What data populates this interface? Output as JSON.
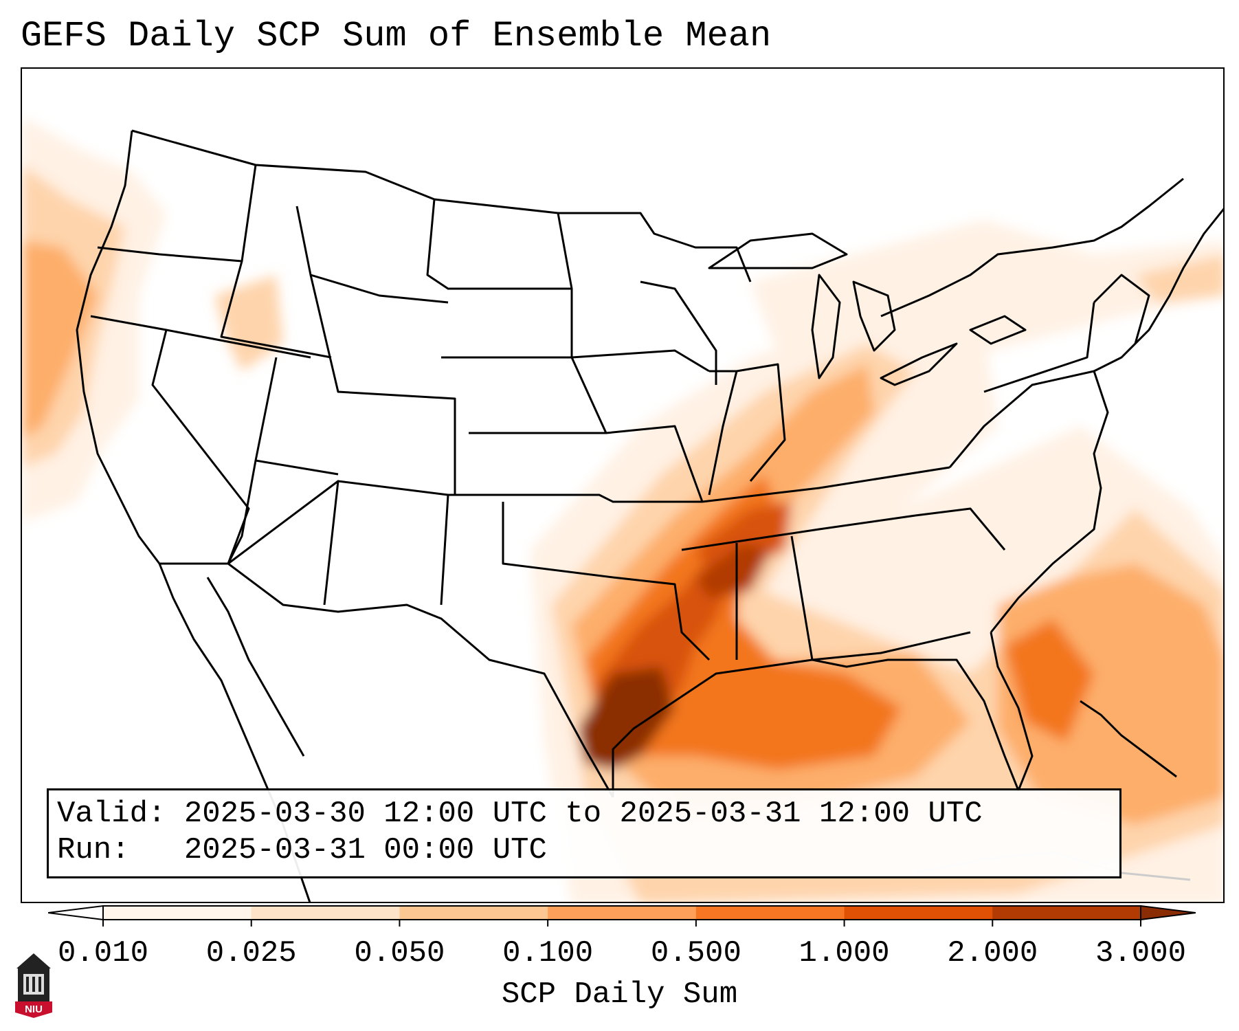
{
  "title": "GEFS Daily SCP Sum of Ensemble Mean",
  "info": {
    "valid": "Valid: 2025-03-30 12:00 UTC to 2025-03-31 12:00 UTC",
    "run": "Run:   2025-03-31 00:00 UTC"
  },
  "colorbar": {
    "label": "SCP Daily Sum",
    "ticks": [
      "0.010",
      "0.025",
      "0.050",
      "0.100",
      "0.500",
      "1.000",
      "2.000",
      "3.000"
    ],
    "colors": [
      "#fff5eb",
      "#fee3c8",
      "#fdc793",
      "#fda059",
      "#f67623",
      "#e05106",
      "#b13b03",
      "#8b2d04"
    ],
    "extend": "both"
  },
  "map": {
    "domain": "CONUS",
    "fill_colors": {
      "lightest": "#fff1e4",
      "light": "#fed4ac",
      "medium": "#fdae6b",
      "orange": "#f3761f",
      "dark": "#d8520a",
      "darkest": "#8b2d04"
    }
  },
  "logo": {
    "text": "NIU",
    "icon": "university-tower-icon"
  }
}
